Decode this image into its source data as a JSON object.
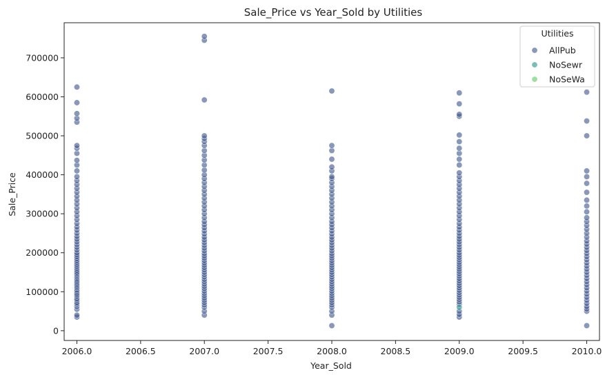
{
  "chart_data": {
    "type": "scatter",
    "title": "Sale_Price vs Year_Sold by Utilities",
    "xlabel": "Year_Sold",
    "ylabel": "Sale_Price",
    "xlim": [
      2005.9,
      2010.1
    ],
    "ylim": [
      -25000,
      790000
    ],
    "x_ticks": [
      "2006.0",
      "2006.5",
      "2007.0",
      "2007.5",
      "2008.0",
      "2008.5",
      "2009.0",
      "2009.5",
      "2010.0"
    ],
    "x_tick_values": [
      2006.0,
      2006.5,
      2007.0,
      2007.5,
      2008.0,
      2008.5,
      2009.0,
      2009.5,
      2010.0
    ],
    "y_ticks": [
      "0",
      "100000",
      "200000",
      "300000",
      "400000",
      "500000",
      "600000",
      "700000"
    ],
    "y_tick_values": [
      0,
      100000,
      200000,
      300000,
      400000,
      500000,
      600000,
      700000
    ],
    "grid": false,
    "legend": {
      "title": "Utilities",
      "placement": "top-right",
      "entries": [
        "AllPub",
        "NoSewr",
        "NoSeWa"
      ]
    },
    "series": [
      {
        "name": "AllPub",
        "color": "#3b528b",
        "points": [
          [
            2006,
            35000
          ],
          [
            2006,
            40000
          ],
          [
            2006,
            55000
          ],
          [
            2006,
            62000
          ],
          [
            2006,
            68000
          ],
          [
            2006,
            72000
          ],
          [
            2006,
            78000
          ],
          [
            2006,
            82000
          ],
          [
            2006,
            88000
          ],
          [
            2006,
            92000
          ],
          [
            2006,
            96000
          ],
          [
            2006,
            101000
          ],
          [
            2006,
            105000
          ],
          [
            2006,
            110000
          ],
          [
            2006,
            114000
          ],
          [
            2006,
            118000
          ],
          [
            2006,
            122000
          ],
          [
            2006,
            126000
          ],
          [
            2006,
            130000
          ],
          [
            2006,
            134000
          ],
          [
            2006,
            138000
          ],
          [
            2006,
            142000
          ],
          [
            2006,
            146000
          ],
          [
            2006,
            150000
          ],
          [
            2006,
            155000
          ],
          [
            2006,
            160000
          ],
          [
            2006,
            165000
          ],
          [
            2006,
            170000
          ],
          [
            2006,
            175000
          ],
          [
            2006,
            180000
          ],
          [
            2006,
            185000
          ],
          [
            2006,
            190000
          ],
          [
            2006,
            195000
          ],
          [
            2006,
            200000
          ],
          [
            2006,
            207000
          ],
          [
            2006,
            214000
          ],
          [
            2006,
            221000
          ],
          [
            2006,
            228000
          ],
          [
            2006,
            235000
          ],
          [
            2006,
            242000
          ],
          [
            2006,
            250000
          ],
          [
            2006,
            258000
          ],
          [
            2006,
            266000
          ],
          [
            2006,
            275000
          ],
          [
            2006,
            285000
          ],
          [
            2006,
            295000
          ],
          [
            2006,
            305000
          ],
          [
            2006,
            315000
          ],
          [
            2006,
            325000
          ],
          [
            2006,
            335000
          ],
          [
            2006,
            345000
          ],
          [
            2006,
            355000
          ],
          [
            2006,
            365000
          ],
          [
            2006,
            375000
          ],
          [
            2006,
            385000
          ],
          [
            2006,
            395000
          ],
          [
            2006,
            410000
          ],
          [
            2006,
            425000
          ],
          [
            2006,
            437000
          ],
          [
            2006,
            455000
          ],
          [
            2006,
            468000
          ],
          [
            2006,
            475000
          ],
          [
            2006,
            535000
          ],
          [
            2006,
            545000
          ],
          [
            2006,
            557000
          ],
          [
            2006,
            585000
          ],
          [
            2006,
            625000
          ],
          [
            2007,
            40000
          ],
          [
            2007,
            50000
          ],
          [
            2007,
            60000
          ],
          [
            2007,
            66000
          ],
          [
            2007,
            72000
          ],
          [
            2007,
            78000
          ],
          [
            2007,
            84000
          ],
          [
            2007,
            90000
          ],
          [
            2007,
            96000
          ],
          [
            2007,
            102000
          ],
          [
            2007,
            108000
          ],
          [
            2007,
            114000
          ],
          [
            2007,
            120000
          ],
          [
            2007,
            126000
          ],
          [
            2007,
            132000
          ],
          [
            2007,
            138000
          ],
          [
            2007,
            144000
          ],
          [
            2007,
            150000
          ],
          [
            2007,
            156000
          ],
          [
            2007,
            162000
          ],
          [
            2007,
            168000
          ],
          [
            2007,
            174000
          ],
          [
            2007,
            180000
          ],
          [
            2007,
            186000
          ],
          [
            2007,
            192000
          ],
          [
            2007,
            198000
          ],
          [
            2007,
            205000
          ],
          [
            2007,
            212000
          ],
          [
            2007,
            219000
          ],
          [
            2007,
            226000
          ],
          [
            2007,
            233000
          ],
          [
            2007,
            240000
          ],
          [
            2007,
            248000
          ],
          [
            2007,
            256000
          ],
          [
            2007,
            264000
          ],
          [
            2007,
            272000
          ],
          [
            2007,
            280000
          ],
          [
            2007,
            290000
          ],
          [
            2007,
            300000
          ],
          [
            2007,
            310000
          ],
          [
            2007,
            320000
          ],
          [
            2007,
            330000
          ],
          [
            2007,
            340000
          ],
          [
            2007,
            350000
          ],
          [
            2007,
            360000
          ],
          [
            2007,
            370000
          ],
          [
            2007,
            380000
          ],
          [
            2007,
            390000
          ],
          [
            2007,
            400000
          ],
          [
            2007,
            412000
          ],
          [
            2007,
            425000
          ],
          [
            2007,
            438000
          ],
          [
            2007,
            450000
          ],
          [
            2007,
            462000
          ],
          [
            2007,
            475000
          ],
          [
            2007,
            485000
          ],
          [
            2007,
            493000
          ],
          [
            2007,
            500000
          ],
          [
            2007,
            592000
          ],
          [
            2007,
            745000
          ],
          [
            2007,
            755000
          ],
          [
            2008,
            13000
          ],
          [
            2008,
            40000
          ],
          [
            2008,
            50000
          ],
          [
            2008,
            60000
          ],
          [
            2008,
            66000
          ],
          [
            2008,
            72000
          ],
          [
            2008,
            78000
          ],
          [
            2008,
            84000
          ],
          [
            2008,
            90000
          ],
          [
            2008,
            96000
          ],
          [
            2008,
            102000
          ],
          [
            2008,
            108000
          ],
          [
            2008,
            114000
          ],
          [
            2008,
            120000
          ],
          [
            2008,
            126000
          ],
          [
            2008,
            132000
          ],
          [
            2008,
            138000
          ],
          [
            2008,
            144000
          ],
          [
            2008,
            150000
          ],
          [
            2008,
            156000
          ],
          [
            2008,
            162000
          ],
          [
            2008,
            168000
          ],
          [
            2008,
            174000
          ],
          [
            2008,
            180000
          ],
          [
            2008,
            186000
          ],
          [
            2008,
            192000
          ],
          [
            2008,
            198000
          ],
          [
            2008,
            205000
          ],
          [
            2008,
            212000
          ],
          [
            2008,
            219000
          ],
          [
            2008,
            226000
          ],
          [
            2008,
            233000
          ],
          [
            2008,
            240000
          ],
          [
            2008,
            248000
          ],
          [
            2008,
            256000
          ],
          [
            2008,
            264000
          ],
          [
            2008,
            272000
          ],
          [
            2008,
            280000
          ],
          [
            2008,
            290000
          ],
          [
            2008,
            300000
          ],
          [
            2008,
            310000
          ],
          [
            2008,
            320000
          ],
          [
            2008,
            330000
          ],
          [
            2008,
            340000
          ],
          [
            2008,
            350000
          ],
          [
            2008,
            360000
          ],
          [
            2008,
            370000
          ],
          [
            2008,
            380000
          ],
          [
            2008,
            390000
          ],
          [
            2008,
            395000
          ],
          [
            2008,
            410000
          ],
          [
            2008,
            420000
          ],
          [
            2008,
            440000
          ],
          [
            2008,
            462000
          ],
          [
            2008,
            475000
          ],
          [
            2008,
            615000
          ],
          [
            2009,
            35000
          ],
          [
            2009,
            42000
          ],
          [
            2009,
            50000
          ],
          [
            2009,
            68000
          ],
          [
            2009,
            74000
          ],
          [
            2009,
            80000
          ],
          [
            2009,
            86000
          ],
          [
            2009,
            92000
          ],
          [
            2009,
            98000
          ],
          [
            2009,
            104000
          ],
          [
            2009,
            110000
          ],
          [
            2009,
            116000
          ],
          [
            2009,
            122000
          ],
          [
            2009,
            128000
          ],
          [
            2009,
            134000
          ],
          [
            2009,
            140000
          ],
          [
            2009,
            146000
          ],
          [
            2009,
            152000
          ],
          [
            2009,
            158000
          ],
          [
            2009,
            164000
          ],
          [
            2009,
            170000
          ],
          [
            2009,
            176000
          ],
          [
            2009,
            182000
          ],
          [
            2009,
            188000
          ],
          [
            2009,
            194000
          ],
          [
            2009,
            200000
          ],
          [
            2009,
            207000
          ],
          [
            2009,
            214000
          ],
          [
            2009,
            221000
          ],
          [
            2009,
            228000
          ],
          [
            2009,
            235000
          ],
          [
            2009,
            242000
          ],
          [
            2009,
            250000
          ],
          [
            2009,
            258000
          ],
          [
            2009,
            266000
          ],
          [
            2009,
            275000
          ],
          [
            2009,
            285000
          ],
          [
            2009,
            295000
          ],
          [
            2009,
            305000
          ],
          [
            2009,
            315000
          ],
          [
            2009,
            325000
          ],
          [
            2009,
            335000
          ],
          [
            2009,
            345000
          ],
          [
            2009,
            355000
          ],
          [
            2009,
            365000
          ],
          [
            2009,
            375000
          ],
          [
            2009,
            385000
          ],
          [
            2009,
            395000
          ],
          [
            2009,
            405000
          ],
          [
            2009,
            425000
          ],
          [
            2009,
            440000
          ],
          [
            2009,
            455000
          ],
          [
            2009,
            468000
          ],
          [
            2009,
            485000
          ],
          [
            2009,
            502000
          ],
          [
            2009,
            550000
          ],
          [
            2009,
            555000
          ],
          [
            2009,
            582000
          ],
          [
            2009,
            610000
          ],
          [
            2010,
            13000
          ],
          [
            2010,
            50000
          ],
          [
            2010,
            56000
          ],
          [
            2010,
            62000
          ],
          [
            2010,
            70000
          ],
          [
            2010,
            78000
          ],
          [
            2010,
            86000
          ],
          [
            2010,
            94000
          ],
          [
            2010,
            102000
          ],
          [
            2010,
            110000
          ],
          [
            2010,
            118000
          ],
          [
            2010,
            126000
          ],
          [
            2010,
            134000
          ],
          [
            2010,
            142000
          ],
          [
            2010,
            150000
          ],
          [
            2010,
            158000
          ],
          [
            2010,
            166000
          ],
          [
            2010,
            174000
          ],
          [
            2010,
            182000
          ],
          [
            2010,
            190000
          ],
          [
            2010,
            198000
          ],
          [
            2010,
            206000
          ],
          [
            2010,
            214000
          ],
          [
            2010,
            222000
          ],
          [
            2010,
            230000
          ],
          [
            2010,
            240000
          ],
          [
            2010,
            250000
          ],
          [
            2010,
            260000
          ],
          [
            2010,
            270000
          ],
          [
            2010,
            280000
          ],
          [
            2010,
            290000
          ],
          [
            2010,
            305000
          ],
          [
            2010,
            320000
          ],
          [
            2010,
            335000
          ],
          [
            2010,
            355000
          ],
          [
            2010,
            378000
          ],
          [
            2010,
            395000
          ],
          [
            2010,
            410000
          ],
          [
            2010,
            500000
          ],
          [
            2010,
            538000
          ],
          [
            2010,
            612000
          ]
        ]
      },
      {
        "name": "NoSewr",
        "color": "#21918c",
        "points": [
          [
            2009,
            60000
          ]
        ]
      },
      {
        "name": "NoSeWa",
        "color": "#5ec962",
        "points": []
      }
    ]
  }
}
